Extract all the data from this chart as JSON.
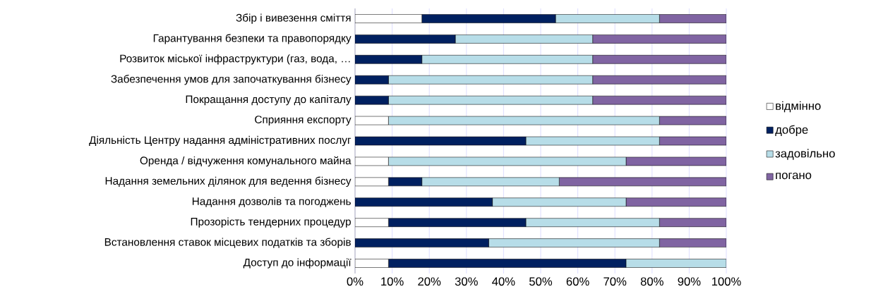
{
  "chart_data": {
    "type": "bar",
    "orientation": "horizontal",
    "stacked": true,
    "grid": "x",
    "legend": "right",
    "categories": [
      "Збір і вивезення сміття",
      "Гарантування безпеки та правопорядку",
      "Розвиток міської інфраструктури (газ, вода, …",
      "Забезпечення умов для започаткування бізнесу",
      "Покращання доступу до капіталу",
      "Сприяння експорту",
      "Діяльність Центру надання адміністративних послуг",
      "Оренда / відчуження комунального майна",
      "Надання земельних ділянок для ведення бізнесу",
      "Надання дозволів та погоджень",
      "Прозорість тендерних процедур",
      "Встановлення ставок місцевих податків та зборів",
      "Доступ до інформації"
    ],
    "series": [
      {
        "name": "відмінно",
        "color": "#ffffff",
        "values": [
          18,
          0,
          0,
          0,
          0,
          9,
          0,
          9,
          9,
          0,
          9,
          0,
          9
        ]
      },
      {
        "name": "добре",
        "color": "#002060",
        "values": [
          36,
          27,
          18,
          9,
          9,
          0,
          46,
          0,
          9,
          37,
          37,
          36,
          64
        ]
      },
      {
        "name": "задовільно",
        "color": "#b7dde8",
        "values": [
          28,
          37,
          46,
          55,
          55,
          73,
          36,
          64,
          37,
          36,
          36,
          46,
          27
        ]
      },
      {
        "name": "погано",
        "color": "#8064a2",
        "values": [
          18,
          36,
          36,
          36,
          36,
          18,
          18,
          27,
          45,
          27,
          18,
          18,
          0
        ]
      }
    ],
    "xlim": [
      0,
      100
    ],
    "xticks": [
      {
        "value": 0,
        "label": "0%"
      },
      {
        "value": 10,
        "label": "10%"
      },
      {
        "value": 20,
        "label": "20%"
      },
      {
        "value": 30,
        "label": "30%"
      },
      {
        "value": 40,
        "label": "40%"
      },
      {
        "value": 50,
        "label": "50%"
      },
      {
        "value": 60,
        "label": "60%"
      },
      {
        "value": 70,
        "label": "70%"
      },
      {
        "value": 80,
        "label": "80%"
      },
      {
        "value": 90,
        "label": "90%"
      },
      {
        "value": 100,
        "label": "100%"
      }
    ]
  }
}
